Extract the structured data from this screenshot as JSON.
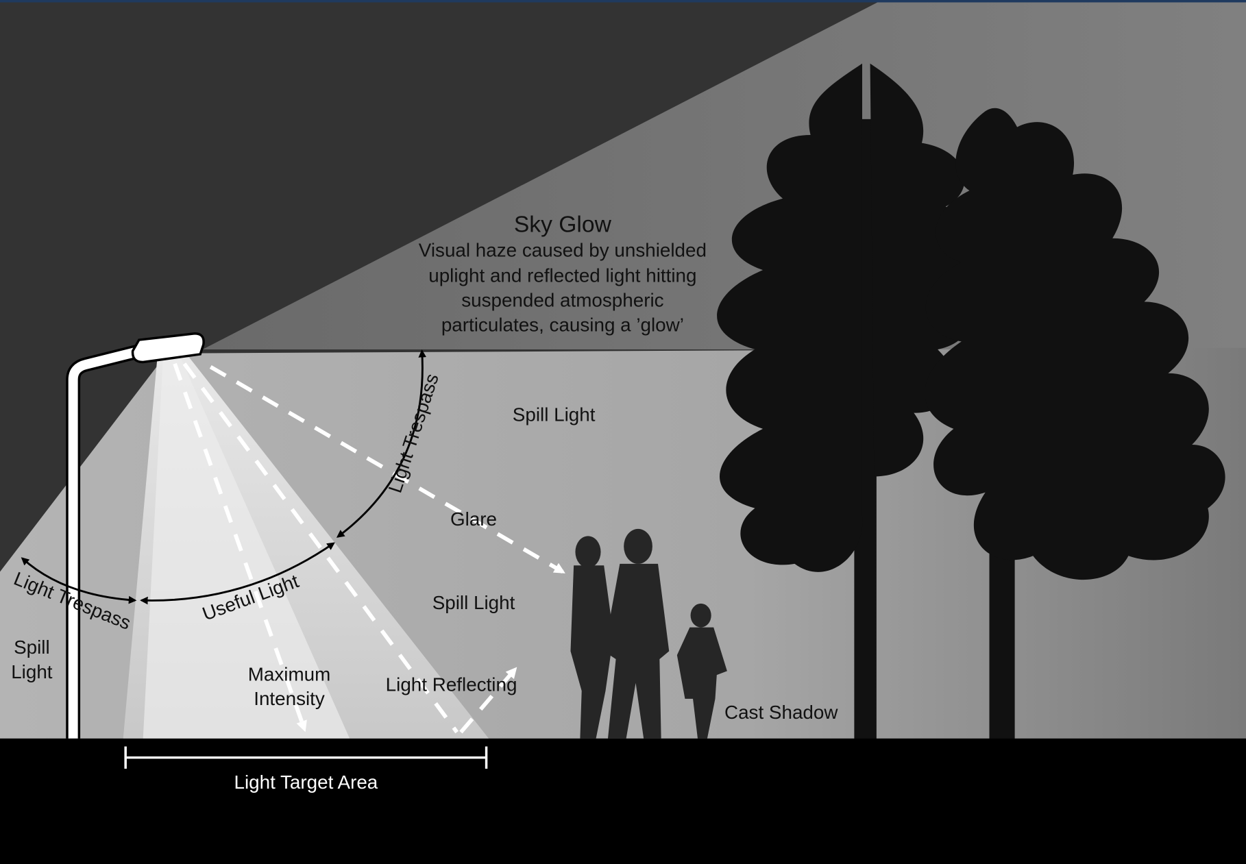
{
  "sky_glow": {
    "title": "Sky Glow",
    "lines": [
      "Visual haze caused by unshielded",
      "uplight and reflected light hitting",
      "suspended atmospheric",
      "particulates, causing a ’glow’"
    ]
  },
  "labels": {
    "spill_light_upper": "Spill Light",
    "light_trespass_right": "Light Trespass",
    "glare": "Glare",
    "spill_light_middle": "Spill Light",
    "useful_light": "Useful Light",
    "light_trespass_left": "Light Trespass",
    "spill_light_left": [
      "Spill",
      "Light"
    ],
    "maximum_intensity": [
      "Maximum",
      "Intensity"
    ],
    "light_reflecting": "Light Reflecting",
    "cast_shadow": "Cast Shadow",
    "light_target_area": "Light Target Area"
  }
}
